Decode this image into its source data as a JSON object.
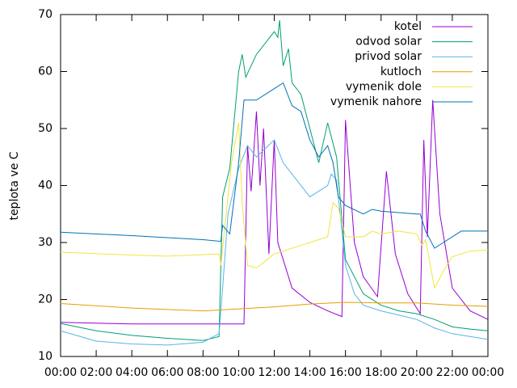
{
  "chart_data": {
    "type": "line",
    "y_label": "teplota ve C",
    "xlim": [
      0,
      24
    ],
    "xticks": [
      {
        "value": 0,
        "label": "00:00"
      },
      {
        "value": 2,
        "label": "02:00"
      },
      {
        "value": 4,
        "label": "04:00"
      },
      {
        "value": 6,
        "label": "06:00"
      },
      {
        "value": 8,
        "label": "08:00"
      },
      {
        "value": 10,
        "label": "10:00"
      },
      {
        "value": 12,
        "label": "12:00"
      },
      {
        "value": 14,
        "label": "14:00"
      },
      {
        "value": 16,
        "label": "16:00"
      },
      {
        "value": 18,
        "label": "18:00"
      },
      {
        "value": 20,
        "label": "20:00"
      },
      {
        "value": 22,
        "label": "22:00"
      },
      {
        "value": 24,
        "label": "00:00"
      }
    ],
    "ylim": [
      10,
      70
    ],
    "yticks": [
      10,
      20,
      30,
      40,
      50,
      60,
      70
    ],
    "grid": false,
    "legend": "top-right",
    "series": [
      {
        "name": "kotel",
        "color": "#9400d3",
        "x": [
          0,
          4,
          9,
          10.3,
          10.5,
          10.7,
          11,
          11.2,
          11.4,
          11.7,
          12,
          12.2,
          13,
          14,
          15,
          15.8,
          16,
          16.5,
          17,
          17.8,
          18.3,
          18.8,
          19.5,
          20.2,
          20.4,
          20.6,
          20.9,
          21.3,
          22,
          23,
          24
        ],
        "values": [
          16,
          15.7,
          15.7,
          15.7,
          47,
          39,
          53,
          40,
          50,
          28,
          48,
          30,
          22,
          19.5,
          18,
          17,
          51.5,
          30,
          24,
          20.5,
          42.5,
          28,
          21,
          17.5,
          48,
          31,
          55,
          35,
          22,
          18,
          16.5
        ]
      },
      {
        "name": "odvod solar",
        "color": "#009e73",
        "x": [
          0,
          2,
          4,
          6,
          8,
          8.9,
          9.1,
          9.5,
          10,
          10.2,
          10.4,
          11,
          12,
          12.2,
          12.3,
          12.5,
          12.8,
          13,
          13.5,
          14,
          14.5,
          15,
          15.5,
          16,
          17,
          18,
          19,
          20,
          21,
          22,
          23,
          24
        ],
        "values": [
          15.8,
          14.5,
          13.7,
          13.2,
          12.8,
          13.5,
          38,
          43,
          60,
          63,
          59,
          63,
          67,
          66,
          69,
          61,
          64,
          58,
          56,
          50,
          44,
          51,
          45,
          27,
          21,
          19,
          18,
          17.5,
          16.5,
          15.2,
          14.8,
          14.5
        ]
      },
      {
        "name": "privod solar",
        "color": "#56b4e9",
        "x": [
          0,
          2,
          4,
          6,
          8,
          8.9,
          9.1,
          9.4,
          10,
          10.5,
          11,
          12,
          12.5,
          13,
          14,
          15,
          15.2,
          15.5,
          16,
          16.5,
          17,
          18,
          20,
          21,
          22,
          24
        ],
        "values": [
          14.5,
          12.7,
          12.2,
          12,
          12.5,
          14,
          22,
          35,
          43,
          47,
          45,
          48,
          44,
          42,
          38,
          40,
          42,
          41,
          26,
          21,
          19,
          18,
          16.5,
          15,
          14,
          13
        ]
      },
      {
        "name": "kutloch",
        "color": "#e69f00",
        "x": [
          0,
          4,
          8,
          12,
          14,
          16,
          18,
          20,
          22,
          24
        ],
        "values": [
          19.3,
          18.5,
          18,
          18.7,
          19.2,
          19.5,
          19.4,
          19.4,
          19,
          18.8
        ]
      },
      {
        "name": "vymenik dole",
        "color": "#f0e442",
        "x": [
          0,
          4,
          6,
          8.9,
          9,
          9.3,
          9.6,
          10,
          10.2,
          10.5,
          11,
          12,
          13,
          14,
          15,
          15.3,
          15.6,
          16,
          17,
          17.5,
          18,
          19,
          20,
          20.3,
          20.5,
          21,
          21.5,
          22,
          23,
          24
        ],
        "values": [
          28.3,
          27.8,
          27.6,
          28,
          26,
          35,
          44,
          51,
          37,
          26,
          25.5,
          28,
          29,
          30,
          31,
          37,
          36,
          31,
          31,
          32,
          31.5,
          32,
          31.5,
          29.5,
          30.5,
          22,
          25,
          27.5,
          28.5,
          28.7
        ]
      },
      {
        "name": "vymenik nahore",
        "color": "#0072b2",
        "x": [
          0,
          4,
          8,
          9,
          9.1,
          9.5,
          10,
          10.3,
          11,
          12,
          12.5,
          13,
          13.5,
          14,
          14.5,
          15,
          15.3,
          15.6,
          16,
          17,
          17.5,
          18,
          20,
          20.2,
          20.5,
          21,
          21.5,
          22,
          22.5,
          24
        ],
        "values": [
          31.8,
          31.2,
          30.5,
          30.2,
          33,
          31.5,
          44,
          55,
          55,
          57,
          58,
          54,
          53,
          48,
          45,
          47,
          44,
          38,
          36.5,
          35,
          35.8,
          35.5,
          35,
          35,
          32,
          29,
          30,
          31,
          32,
          32
        ]
      }
    ]
  }
}
